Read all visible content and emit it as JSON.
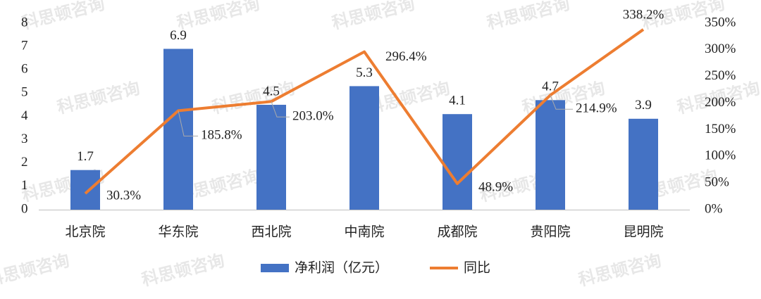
{
  "chart_data": {
    "type": "combo",
    "watermark": "科思顿咨询",
    "categories": [
      "北京院",
      "华东院",
      "西北院",
      "中南院",
      "成都院",
      "贵阳院",
      "昆明院"
    ],
    "series": [
      {
        "name": "净利润（亿元）",
        "type": "bar",
        "color": "#4472c4",
        "values": [
          1.7,
          6.9,
          4.5,
          5.3,
          4.1,
          4.7,
          3.9
        ]
      },
      {
        "name": "同比",
        "type": "line",
        "axis": "y2",
        "color": "#ed7d31",
        "values": [
          30.3,
          185.8,
          203.0,
          296.4,
          48.9,
          214.9,
          338.2
        ],
        "value_labels": [
          "30.3%",
          "185.8%",
          "203.0%",
          "296.4%",
          "48.9%",
          "214.9%",
          "338.2%"
        ]
      }
    ],
    "ylim": [
      0,
      8
    ],
    "yticks": [
      0,
      1,
      2,
      3,
      4,
      5,
      6,
      7,
      8
    ],
    "y2lim": [
      0,
      350
    ],
    "y2ticks": [
      {
        "value": 0,
        "label": "0%"
      },
      {
        "value": 50,
        "label": "50%"
      },
      {
        "value": 100,
        "label": "100%"
      },
      {
        "value": 150,
        "label": "150%"
      },
      {
        "value": 200,
        "label": "200%"
      },
      {
        "value": 250,
        "label": "250%"
      },
      {
        "value": 300,
        "label": "300%"
      },
      {
        "value": 350,
        "label": "350%"
      }
    ],
    "grid": false,
    "legend": "bottom"
  }
}
